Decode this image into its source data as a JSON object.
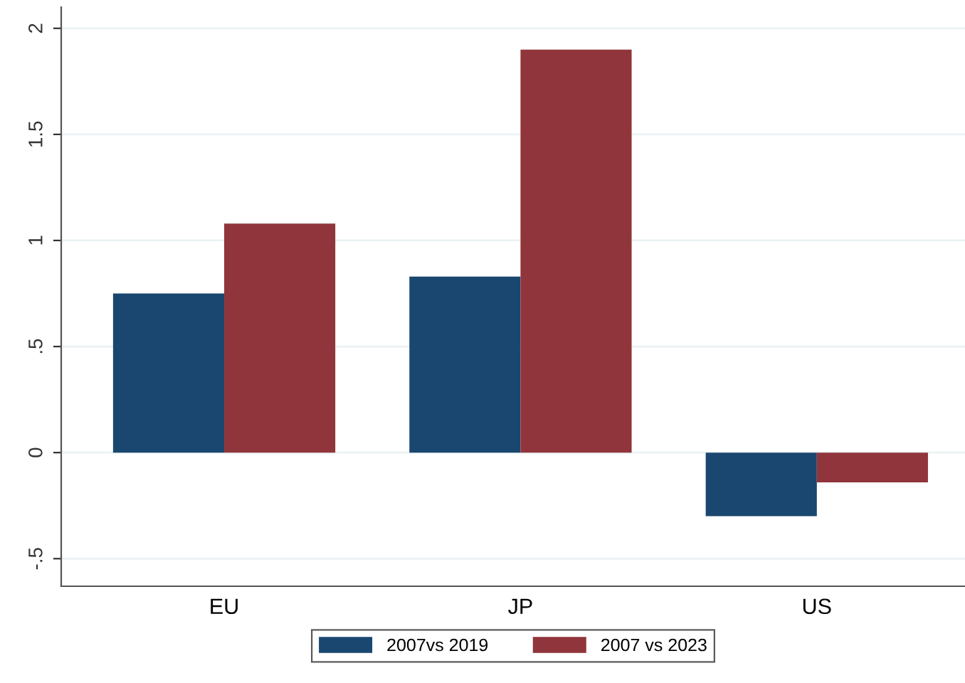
{
  "chart_data": {
    "type": "bar",
    "categories": [
      "EU",
      "JP",
      "US"
    ],
    "series": [
      {
        "name": "2007vs 2019",
        "color": "#1a476f",
        "values": [
          0.75,
          0.83,
          -0.3
        ]
      },
      {
        "name": "2007 vs 2023",
        "color": "#90353b",
        "values": [
          1.08,
          1.9,
          -0.14
        ]
      }
    ],
    "ylim": [
      -0.63,
      2.1
    ],
    "yticks": [
      {
        "value": -0.5,
        "label": "-.5"
      },
      0,
      {
        "value": 0.5,
        "label": ".5"
      },
      1,
      1.5,
      2
    ],
    "grid": "y",
    "legend": "bottom"
  }
}
